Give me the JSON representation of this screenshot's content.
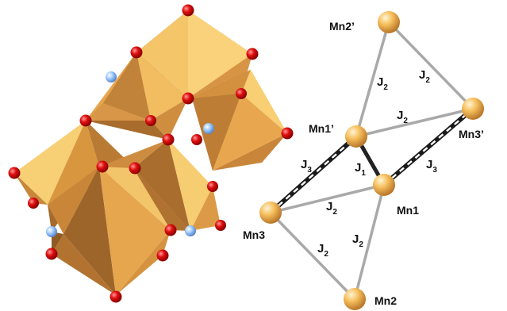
{
  "figure": {
    "atoms": {
      "mn1": "Mn1",
      "mn1p": "Mn1’",
      "mn2": "Mn2",
      "mn2p": "Mn2’",
      "mn3": "Mn3",
      "mn3p": "Mn3’"
    },
    "exchange": {
      "j1": {
        "letter": "J",
        "sub": "1"
      },
      "j2": {
        "letter": "J",
        "sub": "2"
      },
      "j3": {
        "letter": "J",
        "sub": "3"
      }
    },
    "colors": {
      "polyhedron_light": "#f7c868",
      "polyhedron_mid": "#e0a24e",
      "polyhedron_dark": "#a56a2c",
      "oxygen": "#e00000",
      "light_atom": "#8fbfff",
      "manganese": "#f2b24a",
      "bond_gray": "#a9a9a9",
      "bond_dark": "#222222"
    }
  }
}
